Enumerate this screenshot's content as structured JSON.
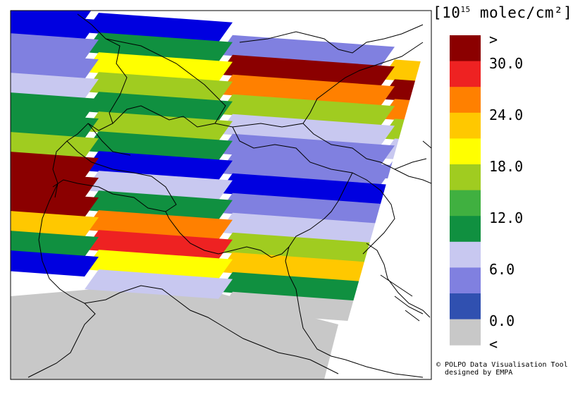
{
  "legend": {
    "unit_prefix": "[10",
    "unit_exp": "15",
    "unit_suffix": " molec/cm²]",
    "labels": [
      ">",
      "30.0",
      "24.0",
      "18.0",
      "12.0",
      "6.0",
      "0.0",
      "<"
    ],
    "colors": [
      "#8b0000",
      "#ee2222",
      "#ff8000",
      "#ffc800",
      "#ffff00",
      "#a0cc20",
      "#40b040",
      "#109040",
      "#c8c8f0",
      "#8080e0",
      "#3050b0",
      "#c8c8c8"
    ]
  },
  "credit": {
    "line1": "© POLPO Data Visualisation Tool",
    "line2": "designed by EMPA"
  },
  "map": {
    "no_data_color": "#c8c8c8",
    "bands": [
      [
        "#0000e0",
        "#0000e0",
        "#8080e0",
        "#ffc800",
        "#40b040"
      ],
      [
        "#0000e0",
        "#109040",
        "#8b0000",
        "#8b0000",
        "#a0cc20"
      ],
      [
        "#8080e0",
        "#ffff00",
        "#ff8000",
        "#ff8000"
      ],
      [
        "#8080e0",
        "#a0cc20",
        "#a0cc20",
        "#a0cc20"
      ],
      [
        "#c8c8f0",
        "#109040",
        "#c8c8f0",
        "#c8c8f0"
      ],
      [
        "#109040",
        "#a0cc20",
        "#8080e0",
        "#8080e0"
      ],
      [
        "#109040",
        "#109040",
        "#8080e0",
        "#8080e0"
      ],
      [
        "#a0cc20",
        "#0000e0",
        "#0000e0",
        "#0000e0"
      ],
      [
        "#8b0000",
        "#c8c8f0",
        "#8080e0",
        "#8080e0"
      ],
      [
        "#8b0000",
        "#109040",
        "#c8c8f0",
        "#c8c8f0"
      ],
      [
        "#8b0000",
        "#ff8000",
        "#a0cc20",
        "#a0cc20"
      ],
      [
        "#ffc800",
        "#ee2222",
        "#ffc800",
        "#a0cc20"
      ],
      [
        "#109040",
        "#ffff00",
        "#109040",
        "#ffc800"
      ],
      [
        "#0000e0",
        "#c8c8f0",
        "#c8c8c8",
        "#109040"
      ]
    ]
  }
}
